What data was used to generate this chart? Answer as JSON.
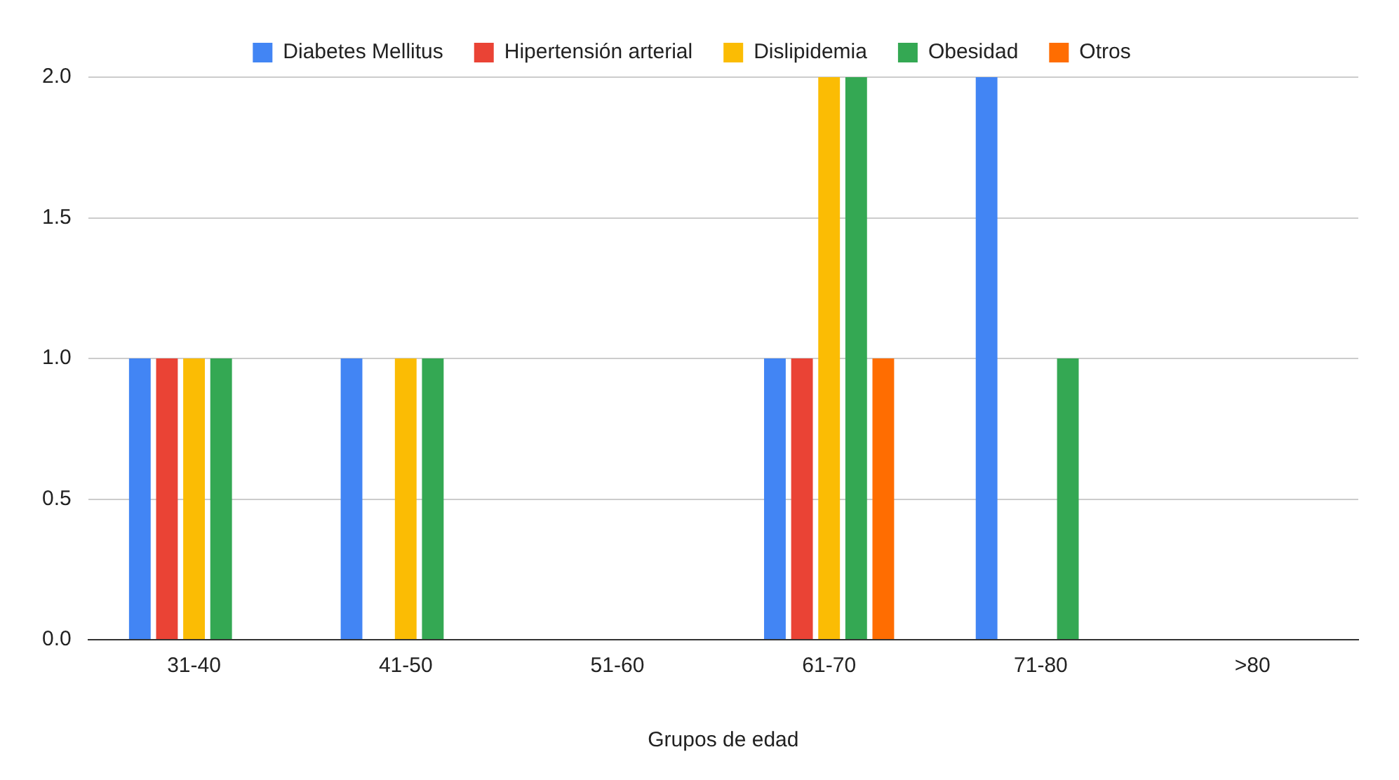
{
  "chart_data": {
    "type": "bar",
    "xlabel": "Grupos de edad",
    "categories": [
      "31-40",
      "41-50",
      "51-60",
      "61-70",
      "71-80",
      ">80"
    ],
    "series": [
      {
        "name": "Diabetes Mellitus",
        "color": "#4285f4",
        "values": [
          1,
          1,
          0,
          1,
          2,
          0
        ]
      },
      {
        "name": "Hipertensión arterial",
        "color": "#ea4335",
        "values": [
          1,
          0,
          0,
          1,
          0,
          0
        ]
      },
      {
        "name": "Dislipidemia",
        "color": "#fbbc04",
        "values": [
          1,
          1,
          0,
          2,
          0,
          0
        ]
      },
      {
        "name": "Obesidad",
        "color": "#34a853",
        "values": [
          1,
          1,
          0,
          2,
          1,
          0
        ]
      },
      {
        "name": "Otros",
        "color": "#ff6d01",
        "values": [
          0,
          0,
          0,
          1,
          0,
          0
        ]
      }
    ],
    "ylim": [
      0,
      2
    ],
    "yticks": [
      {
        "value": 0,
        "label": "0.0"
      },
      {
        "value": 0.5,
        "label": "0.5"
      },
      {
        "value": 1,
        "label": "1.0"
      },
      {
        "value": 1.5,
        "label": "1.5"
      },
      {
        "value": 2,
        "label": "2.0"
      }
    ],
    "grid": "y",
    "legend": "top"
  }
}
